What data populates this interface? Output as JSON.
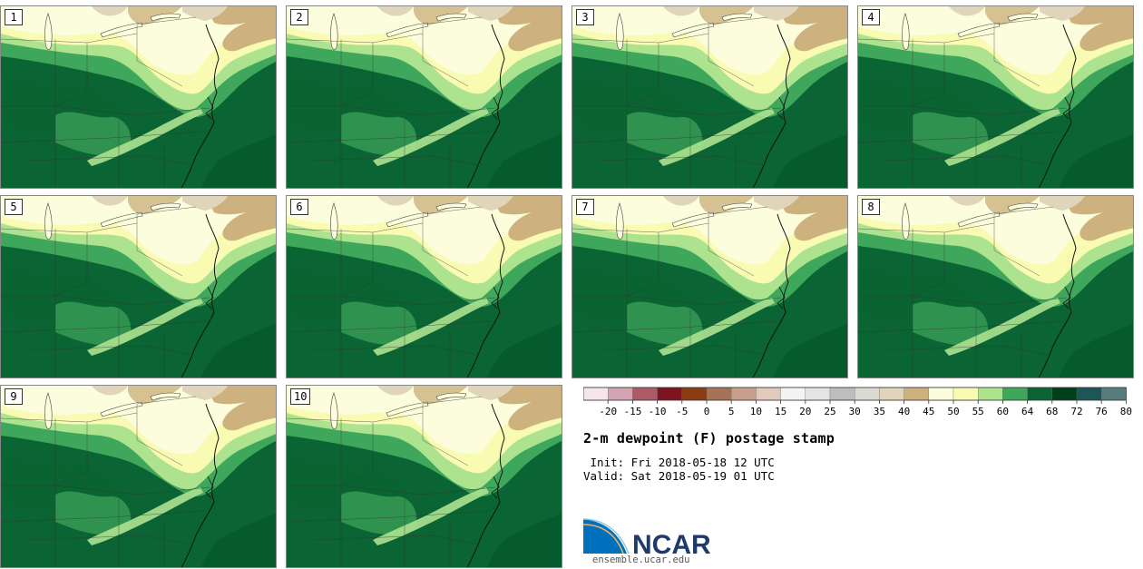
{
  "panels": [
    {
      "label": "1"
    },
    {
      "label": "2"
    },
    {
      "label": "3"
    },
    {
      "label": "4"
    },
    {
      "label": "5"
    },
    {
      "label": "6"
    },
    {
      "label": "7"
    },
    {
      "label": "8"
    },
    {
      "label": "9"
    },
    {
      "label": "10"
    }
  ],
  "colorbar": {
    "colors": [
      "#f5e6ec",
      "#d3a5b3",
      "#ab5b66",
      "#7d1521",
      "#8a3c13",
      "#a77358",
      "#c89f8d",
      "#e1c9be",
      "#f4f4f6",
      "#e4e4e4",
      "#bdbdbd",
      "#dadad3",
      "#e0d5bb",
      "#cdb27f",
      "#fbfddc",
      "#f9fbb3",
      "#ade28f",
      "#3fa75b",
      "#0b6433",
      "#003f1c",
      "#1c5657",
      "#587b7c"
    ],
    "ticks": [
      "-20",
      "-15",
      "-10",
      "-5",
      "0",
      "5",
      "10",
      "15",
      "20",
      "25",
      "30",
      "35",
      "40",
      "45",
      "50",
      "55",
      "60",
      "64",
      "68",
      "72",
      "76",
      "80"
    ]
  },
  "title": "2-m dewpoint (F) postage stamp",
  "init_line": " Init: Fri 2018-05-18 12 UTC",
  "valid_line": "Valid: Sat 2018-05-19 01 UTC",
  "logo": {
    "text": "NCAR",
    "url": "ensemble.ucar.edu"
  },
  "map_colors": {
    "tan": "#cdb27f",
    "light_tan": "#e0d5bb",
    "pale_yellow": "#fbfddc",
    "yellow": "#f9fbb3",
    "light_green": "#ade28f",
    "green": "#3fa75b",
    "dark_green": "#0b6433",
    "darkest_green": "#003f1c"
  }
}
